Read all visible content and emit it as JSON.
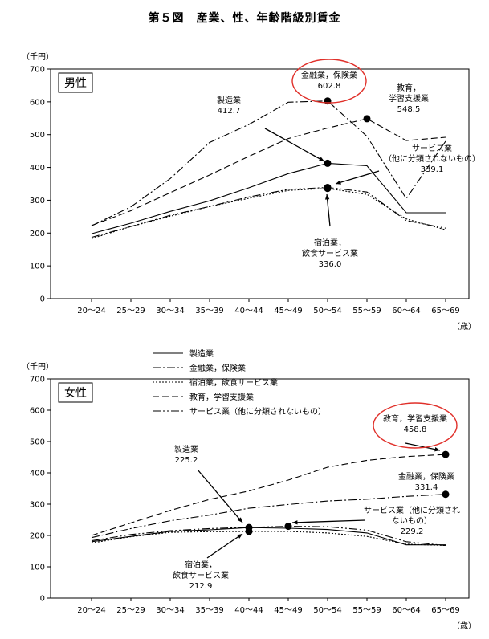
{
  "figure_title": "第５図　産業、性、年齢階級別賃金",
  "chart_data": [
    {
      "type": "line",
      "panel": "男性",
      "y_unit": "（千円）",
      "x_unit": "（歳）",
      "ylim": [
        0,
        700
      ],
      "yticks": [
        0,
        100,
        200,
        300,
        400,
        500,
        600,
        700
      ],
      "categories": [
        "20～24",
        "25～29",
        "30～34",
        "35～39",
        "40～44",
        "45～49",
        "50～54",
        "55～59",
        "60～64",
        "65～69"
      ],
      "series": [
        {
          "name": "製造業",
          "style": "solid",
          "values": [
            198,
            230,
            266,
            298,
            338,
            381,
            412.7,
            405,
            262,
            262
          ]
        },
        {
          "name": "金融業，保険業",
          "style": "dashdot",
          "values": [
            222,
            280,
            366,
            476,
            531,
            599,
            602.8,
            495,
            305,
            480
          ]
        },
        {
          "name": "宿泊業，飲食サービス業",
          "style": "dotted",
          "values": [
            183,
            220,
            251,
            281,
            306,
            330,
            336.0,
            318,
            243,
            210
          ]
        },
        {
          "name": "教育，学習支援業",
          "style": "dashed",
          "values": [
            223,
            268,
            323,
            377,
            434,
            488,
            520,
            548.5,
            482,
            492
          ]
        },
        {
          "name": "サービス業（他に分類されないもの）",
          "style": "dashdotdot",
          "values": [
            187,
            220,
            254,
            281,
            310,
            333,
            339.1,
            325,
            238,
            215
          ]
        }
      ],
      "annotations": [
        {
          "label": "製造業",
          "value": "412.7",
          "series": 0,
          "index": 6
        },
        {
          "label": "金融業，保険業",
          "value": "602.8",
          "series": 1,
          "index": 6,
          "circled": true
        },
        {
          "label": "教育，\n学習支援業",
          "value": "548.5",
          "series": 3,
          "index": 7
        },
        {
          "label": "サービス業\n（他に分類されないもの）",
          "value": "339.1",
          "series": 4,
          "index": 6
        },
        {
          "label": "宿泊業，\n飲食サービス業",
          "value": "336.0",
          "series": 2,
          "index": 6
        }
      ]
    },
    {
      "type": "line",
      "panel": "女性",
      "y_unit": "（千円）",
      "x_unit": "（歳）",
      "ylim": [
        0,
        700
      ],
      "yticks": [
        0,
        100,
        200,
        300,
        400,
        500,
        600,
        700
      ],
      "categories": [
        "20～24",
        "25～29",
        "30～34",
        "35～39",
        "40～44",
        "45～49",
        "50～54",
        "55～59",
        "60～64",
        "65～69"
      ],
      "legend": [
        {
          "name": "製造業",
          "style": "solid"
        },
        {
          "name": "金融業，保険業",
          "style": "dashdot"
        },
        {
          "name": "宿泊業，飲食サービス業",
          "style": "dotted"
        },
        {
          "name": "教育，学習支援業",
          "style": "dashed"
        },
        {
          "name": "サービス業（他に分類されないもの）",
          "style": "dashdotdot"
        }
      ],
      "series": [
        {
          "name": "製造業",
          "style": "solid",
          "values": [
            180,
            197,
            213,
            218,
            225.2,
            223,
            219,
            208,
            170,
            170
          ]
        },
        {
          "name": "金融業，保険業",
          "style": "dashdot",
          "values": [
            193,
            222,
            247,
            265,
            287,
            299,
            310,
            316,
            325,
            331.4
          ]
        },
        {
          "name": "宿泊業，飲食サービス業",
          "style": "dotted",
          "values": [
            176,
            196,
            210,
            212,
            212.9,
            213,
            208,
            197,
            172,
            168
          ]
        },
        {
          "name": "教育，学習支援業",
          "style": "dashed",
          "values": [
            200,
            240,
            280,
            315,
            342,
            377,
            418,
            440,
            452,
            458.8
          ]
        },
        {
          "name": "サービス業（他に分類されないもの）",
          "style": "dashdotdot",
          "values": [
            183,
            203,
            215,
            222,
            226,
            229.2,
            228,
            217,
            180,
            168
          ]
        }
      ],
      "annotations": [
        {
          "label": "製造業",
          "value": "225.2",
          "series": 0,
          "index": 4
        },
        {
          "label": "宿泊業，\n飲食サービス業",
          "value": "212.9",
          "series": 2,
          "index": 4
        },
        {
          "label": "サービス業（他に分類され\nないもの）",
          "value": "229.2",
          "series": 4,
          "index": 5
        },
        {
          "label": "教育，学習支援業",
          "value": "458.8",
          "series": 3,
          "index": 9,
          "circled": true
        },
        {
          "label": "金融業，保険業",
          "value": "331.4",
          "series": 1,
          "index": 9
        }
      ]
    }
  ]
}
